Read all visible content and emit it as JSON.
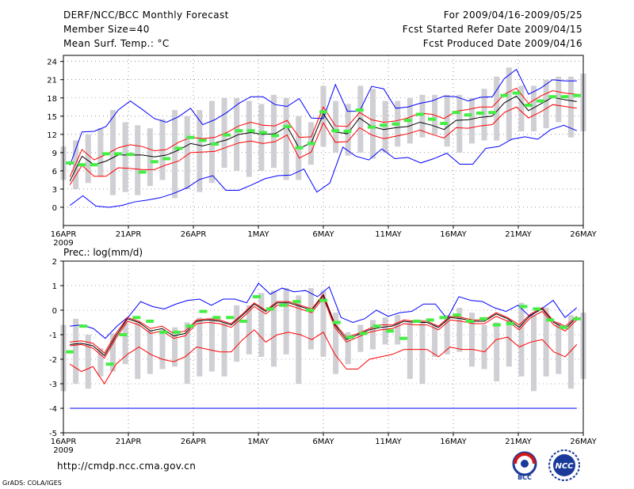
{
  "header": {
    "title": "DERF/NCC/BCC Monthly Forecast",
    "member_size": "Member Size=40",
    "variable1": "Mean Surf. Temp.: °C",
    "period": "For 2009/04/16-2009/05/25",
    "fcst_started": "Fcst Started Refer Date 2009/04/15",
    "fcst_produced": "Fcst Produced Date 2009/04/16"
  },
  "footer": {
    "url": "http://cmdp.ncc.cma.gov.cn",
    "grads": "GrADS: COLA/IGES",
    "logo1_text": "BCC",
    "logo2_text": "NCC"
  },
  "colors": {
    "max_line": "#0000ff",
    "min_line": "#0000ff",
    "spread_line": "#ff0000",
    "mean_line": "#000000",
    "obs_marker": "#44ee44",
    "box": "#cfcfd4",
    "grid": "#555555"
  },
  "chart_data": [
    {
      "type": "line",
      "title": "Mean Surf. Temp.: °C",
      "x_tick_labels": [
        "16APR",
        "21APR",
        "26APR",
        "1MAY",
        "6MAY",
        "11MAY",
        "16MAY",
        "21MAY",
        "26MAY"
      ],
      "x_year_label": "2009",
      "ylim": [
        -3,
        25
      ],
      "yticks": [
        0,
        3,
        6,
        9,
        12,
        15,
        18,
        21,
        24
      ],
      "days": 40,
      "series": [
        {
          "name": "max",
          "values": [
            0.3,
            1.9,
            0.2,
            0,
            0.3,
            0.9,
            1.2,
            1.6,
            2.3,
            3.2,
            4.6,
            5.2,
            2.8,
            2.8,
            3.7,
            4.7,
            5.2,
            5.3,
            6.3,
            2.5,
            4.0,
            9.9,
            8.4,
            7.8,
            9.6,
            8.0,
            8.2,
            7.3,
            8.0,
            8.9,
            7.1,
            7.1,
            9.7,
            10.0,
            11.2,
            11.6,
            11.2,
            12.8,
            13.5,
            12.6
          ]
        },
        {
          "name": "upper_max",
          "values": [
            6.9,
            12.4,
            12.5,
            13.3,
            16.0,
            17.5,
            16.1,
            14.6,
            14.0,
            14.9,
            16.3,
            13.6,
            14.4,
            15.6,
            17.1,
            18.2,
            18.2,
            16.9,
            16.6,
            17.9,
            14.7,
            14.6,
            20.2,
            15.8,
            15.8,
            19.9,
            19.5,
            16.3,
            16.5,
            17.1,
            17.5,
            18.3,
            18.2,
            17.5,
            18.1,
            18.2,
            21.2,
            22.7,
            18.6,
            19.6,
            21.0,
            20.8,
            20.8
          ]
        },
        {
          "name": "upper",
          "values": [
            5.0,
            9.5,
            7.8,
            8.7,
            9.8,
            10.3,
            10.0,
            9.3,
            9.5,
            10.7,
            11.5,
            11.3,
            11.5,
            12.3,
            13.4,
            14.0,
            13.5,
            13.4,
            14.3,
            11.5,
            11.6,
            16.5,
            13.4,
            13.3,
            15.6,
            14.4,
            14.0,
            14.2,
            14.7,
            15.5,
            15.3,
            14.6,
            15.8,
            16.1,
            16.5,
            16.5,
            18.6,
            19.6,
            17.1,
            18.3,
            19.2,
            18.8,
            18.6
          ]
        },
        {
          "name": "mean",
          "values": [
            4.3,
            8.4,
            7.0,
            7.6,
            8.6,
            8.6,
            8.6,
            8.3,
            8.6,
            9.4,
            10.5,
            10.1,
            10.6,
            11.1,
            12.0,
            12.3,
            12.0,
            12.1,
            13.3,
            9.7,
            10.6,
            15.4,
            12.4,
            12.1,
            14.7,
            13.3,
            12.8,
            13.1,
            13.3,
            14.0,
            13.5,
            12.8,
            14.3,
            14.4,
            14.8,
            15.0,
            17.2,
            18.3,
            15.9,
            17.0,
            18.1,
            17.7,
            17.4
          ]
        },
        {
          "name": "lower",
          "values": [
            3.7,
            6.9,
            5.1,
            5.1,
            6.5,
            6.4,
            6.2,
            6.2,
            7.0,
            7.6,
            9.0,
            9.1,
            9.2,
            9.9,
            10.6,
            10.9,
            10.5,
            10.8,
            11.9,
            8.1,
            9.1,
            13.9,
            10.7,
            10.8,
            13.1,
            11.9,
            11.3,
            11.7,
            12.1,
            12.7,
            12.0,
            11.4,
            13.1,
            13.0,
            13.4,
            13.6,
            15.6,
            16.5,
            14.7,
            15.7,
            16.9,
            16.6,
            16.3
          ]
        },
        {
          "name": "obs",
          "values": [
            7.3,
            7.0,
            7.0,
            8.8,
            8.8,
            8.7,
            5.8,
            7.5,
            8.0,
            9.7,
            11.5,
            11.0,
            10.4,
            11.9,
            12.6,
            12.6,
            12.3,
            11.8,
            13.3,
            9.8,
            10.5,
            15.7,
            12.6,
            12.5,
            16.0,
            13.2,
            13.5,
            13.7,
            14.3,
            15.3,
            14.5,
            13.8,
            15.6,
            15.2,
            15.5,
            15.6,
            18.4,
            18.8,
            16.8,
            17.5,
            18.2,
            18.2,
            18.4
          ]
        }
      ],
      "boxes": [
        [
          4.5,
          10.0
        ],
        [
          3.0,
          11.0
        ],
        [
          4.0,
          12.0
        ],
        [
          5.0,
          13.0
        ],
        [
          2.0,
          16.0
        ],
        [
          2.5,
          14.0
        ],
        [
          2.0,
          13.5
        ],
        [
          3.5,
          13.0
        ],
        [
          4.5,
          14.5
        ],
        [
          1.5,
          16.0
        ],
        [
          3.0,
          15.0
        ],
        [
          2.5,
          16.0
        ],
        [
          4.0,
          17.5
        ],
        [
          6.5,
          18.0
        ],
        [
          6.0,
          18.0
        ],
        [
          5.0,
          17.5
        ],
        [
          6.0,
          17.0
        ],
        [
          6.5,
          18.5
        ],
        [
          4.5,
          18.0
        ],
        [
          4.5,
          15.0
        ],
        [
          7.0,
          14.0
        ],
        [
          10.0,
          20.0
        ],
        [
          9.0,
          17.5
        ],
        [
          8.5,
          17.0
        ],
        [
          9.0,
          20.0
        ],
        [
          8.0,
          19.5
        ],
        [
          9.0,
          17.5
        ],
        [
          10.0,
          17.5
        ],
        [
          10.5,
          18.0
        ],
        [
          11.5,
          18.5
        ],
        [
          12.0,
          18.5
        ],
        [
          10.0,
          18.5
        ],
        [
          9.0,
          18.5
        ],
        [
          10.5,
          18.0
        ],
        [
          11.0,
          19.5
        ],
        [
          11.0,
          21.5
        ],
        [
          11.0,
          23.0
        ],
        [
          12.5,
          20.0
        ],
        [
          12.5,
          20.0
        ],
        [
          13.0,
          21.0
        ],
        [
          14.0,
          21.5
        ],
        [
          11.5,
          21.5
        ],
        [
          12.5,
          22.0
        ]
      ]
    },
    {
      "type": "line",
      "title": "Prec.: log(mm/d)",
      "x_tick_labels": [
        "16APR",
        "21APR",
        "26APR",
        "1MAY",
        "6MAY",
        "11MAY",
        "16MAY",
        "21MAY",
        "26MAY"
      ],
      "x_year_label": "2009",
      "ylim": [
        -5,
        2
      ],
      "yticks": [
        -5,
        -4,
        -3,
        -2,
        -1,
        0,
        1,
        2
      ],
      "days": 40,
      "series": [
        {
          "name": "max",
          "values": [
            -0.65,
            -0.6,
            -0.75,
            -1.15,
            -0.65,
            -0.25,
            0.35,
            0.15,
            0.05,
            0.25,
            0.4,
            0.45,
            0.2,
            0.45,
            0.45,
            0.3,
            1.1,
            0.65,
            0.9,
            0.75,
            0.8,
            0.55,
            0.95,
            -0.3,
            -0.5,
            -0.35,
            0.0,
            -0.25,
            -0.1,
            -0.05,
            0.25,
            0.25,
            -0.35,
            0.55,
            0.4,
            0.35,
            0.1,
            -0.05,
            0.2,
            -0.25,
            0.05,
            0.4,
            -0.3,
            0.1
          ]
        },
        {
          "name": "upper",
          "values": [
            -1.3,
            -1.25,
            -1.35,
            -1.75,
            -0.95,
            -0.3,
            -0.45,
            -0.75,
            -0.65,
            -0.95,
            -0.85,
            -0.4,
            -0.35,
            -0.4,
            -0.55,
            -0.15,
            0.3,
            0.0,
            0.35,
            0.35,
            0.2,
            0.05,
            0.65,
            -0.55,
            -1.1,
            -0.95,
            -0.75,
            -0.6,
            -0.6,
            -0.4,
            -0.45,
            -0.45,
            -0.65,
            -0.25,
            -0.3,
            -0.4,
            -0.4,
            -0.1,
            -0.3,
            -0.6,
            -0.15,
            0.1,
            -0.45,
            -0.65,
            -0.25
          ]
        },
        {
          "name": "mean",
          "values": [
            -1.4,
            -1.35,
            -1.45,
            -1.85,
            -1.05,
            -0.35,
            -0.5,
            -0.85,
            -0.75,
            -1.05,
            -0.95,
            -0.45,
            -0.4,
            -0.45,
            -0.6,
            -0.2,
            0.25,
            -0.05,
            0.3,
            0.3,
            0.15,
            0.0,
            0.6,
            -0.6,
            -1.2,
            -1.0,
            -0.8,
            -0.7,
            -0.65,
            -0.45,
            -0.5,
            -0.5,
            -0.7,
            -0.3,
            -0.35,
            -0.45,
            -0.45,
            -0.15,
            -0.35,
            -0.7,
            -0.2,
            0.05,
            -0.5,
            -0.75,
            -0.3
          ]
        },
        {
          "name": "lower",
          "values": [
            -1.45,
            -1.4,
            -1.55,
            -1.95,
            -1.15,
            -0.45,
            -0.6,
            -0.95,
            -0.85,
            -1.15,
            -1.05,
            -0.55,
            -0.5,
            -0.55,
            -0.7,
            -0.3,
            0.15,
            -0.15,
            0.2,
            0.2,
            0.05,
            -0.1,
            0.5,
            -0.7,
            -1.3,
            -1.1,
            -0.9,
            -0.8,
            -0.75,
            -0.55,
            -0.6,
            -0.6,
            -0.8,
            -0.4,
            -0.45,
            -0.55,
            -0.55,
            -0.25,
            -0.45,
            -0.8,
            -0.3,
            -0.05,
            -0.6,
            -0.85,
            -0.4
          ]
        },
        {
          "name": "min",
          "values": [
            -2.2,
            -2.5,
            -2.3,
            -3.0,
            -2.2,
            -1.8,
            -1.5,
            -1.8,
            -2.0,
            -2.1,
            -1.9,
            -1.5,
            -1.6,
            -1.7,
            -1.7,
            -1.2,
            -0.8,
            -1.3,
            -1.0,
            -0.9,
            -1.0,
            -1.2,
            -0.9,
            -1.8,
            -2.4,
            -2.4,
            -2.0,
            -1.9,
            -1.8,
            -1.6,
            -1.6,
            -1.6,
            -1.9,
            -1.5,
            -1.6,
            -1.6,
            -1.7,
            -1.2,
            -1.1,
            -1.5,
            -1.3,
            -1.2,
            -1.7,
            -1.9,
            -1.4
          ]
        },
        {
          "name": "obs",
          "values": [
            -1.7,
            -0.65,
            null,
            -2.2,
            -1.0,
            -0.3,
            -0.45,
            -0.9,
            -0.9,
            -0.65,
            -0.05,
            -0.3,
            -0.3,
            -0.45,
            0.55,
            0.05,
            0.2,
            0.35,
            0.0,
            0.4,
            -0.5,
            -1.1,
            -0.95,
            -0.65,
            -0.85,
            -1.15,
            -0.45,
            -0.4,
            -0.3,
            -0.2,
            -0.45,
            -0.35,
            -0.6,
            -0.55,
            0.15,
            0.05,
            -0.4,
            -0.7,
            -0.35
          ]
        }
      ],
      "baseline": -4.0,
      "boxes": [
        [
          -3.3,
          -0.6
        ],
        [
          -3.0,
          -0.35
        ],
        [
          -3.2,
          -1.0
        ],
        [
          -2.7,
          -1.55
        ],
        [
          -2.5,
          -0.95
        ],
        [
          -2.2,
          -0.5
        ],
        [
          -2.8,
          -0.5
        ],
        [
          -2.6,
          -0.8
        ],
        [
          -2.4,
          -0.8
        ],
        [
          -2.3,
          -0.7
        ],
        [
          -3.0,
          -0.5
        ],
        [
          -2.7,
          -0.3
        ],
        [
          -2.5,
          -0.3
        ],
        [
          -2.7,
          -0.5
        ],
        [
          -2.1,
          0.2
        ],
        [
          -1.8,
          0.2
        ],
        [
          -1.9,
          0.7
        ],
        [
          -2.3,
          0.8
        ],
        [
          -1.8,
          0.9
        ],
        [
          -3.0,
          0.6
        ],
        [
          -1.6,
          0.9
        ],
        [
          -1.9,
          0.8
        ],
        [
          -2.6,
          -0.1
        ],
        [
          -2.2,
          -0.9
        ],
        [
          -1.7,
          -0.6
        ],
        [
          -1.6,
          -0.4
        ],
        [
          -1.4,
          -0.3
        ],
        [
          -1.4,
          -0.2
        ],
        [
          -2.8,
          -0.5
        ],
        [
          -3.0,
          -0.4
        ],
        [
          -1.9,
          -0.6
        ],
        [
          -1.8,
          -0.2
        ],
        [
          -1.7,
          0.1
        ],
        [
          -2.3,
          -0.1
        ],
        [
          -2.4,
          -0.6
        ],
        [
          -2.9,
          -0.5
        ],
        [
          -2.3,
          -0.4
        ],
        [
          -2.7,
          0.3
        ],
        [
          -3.3,
          -0.2
        ],
        [
          -2.7,
          0.1
        ],
        [
          -2.6,
          -0.5
        ],
        [
          -3.2,
          -0.2
        ],
        [
          -2.8,
          -0.1
        ]
      ]
    }
  ]
}
